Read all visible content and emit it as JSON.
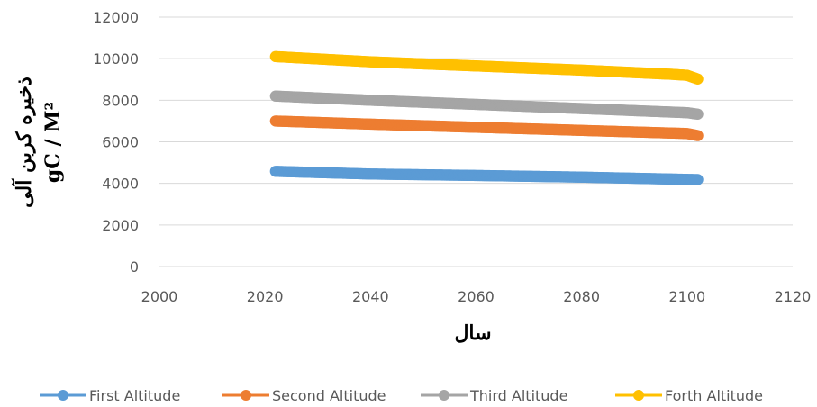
{
  "chart_data": {
    "type": "scatter",
    "xlabel": "سال",
    "ylabel_line1": "ذخیره کربن آلی",
    "ylabel_line2": "gC / M²",
    "xlim": [
      2000,
      2120
    ],
    "ylim": [
      0,
      12000
    ],
    "x_ticks": [
      "2000",
      "2020",
      "2040",
      "2060",
      "2080",
      "2100",
      "2120"
    ],
    "y_ticks": [
      "0",
      "2000",
      "4000",
      "6000",
      "8000",
      "10000",
      "12000"
    ],
    "grid": "horizontal",
    "legend_position": "bottom",
    "x_range": [
      2022,
      2102
    ],
    "series": [
      {
        "name": "First Altitude",
        "color": "#5B9BD5",
        "points": [
          [
            2022,
            4580
          ],
          [
            2040,
            4450
          ],
          [
            2060,
            4380
          ],
          [
            2080,
            4300
          ],
          [
            2102,
            4180
          ]
        ]
      },
      {
        "name": "Second Altitude",
        "color": "#ED7D31",
        "points": [
          [
            2022,
            7000
          ],
          [
            2040,
            6850
          ],
          [
            2060,
            6700
          ],
          [
            2080,
            6550
          ],
          [
            2100,
            6400
          ],
          [
            2102,
            6300
          ]
        ]
      },
      {
        "name": "Third Altitude",
        "color": "#A5A5A5",
        "points": [
          [
            2022,
            8200
          ],
          [
            2040,
            8000
          ],
          [
            2060,
            7800
          ],
          [
            2080,
            7600
          ],
          [
            2100,
            7400
          ],
          [
            2102,
            7330
          ]
        ]
      },
      {
        "name": "Forth Altitude",
        "color": "#FFC000",
        "points": [
          [
            2022,
            10100
          ],
          [
            2040,
            9850
          ],
          [
            2060,
            9650
          ],
          [
            2080,
            9450
          ],
          [
            2097,
            9250
          ],
          [
            2100,
            9200
          ],
          [
            2102,
            9020
          ]
        ]
      }
    ]
  }
}
